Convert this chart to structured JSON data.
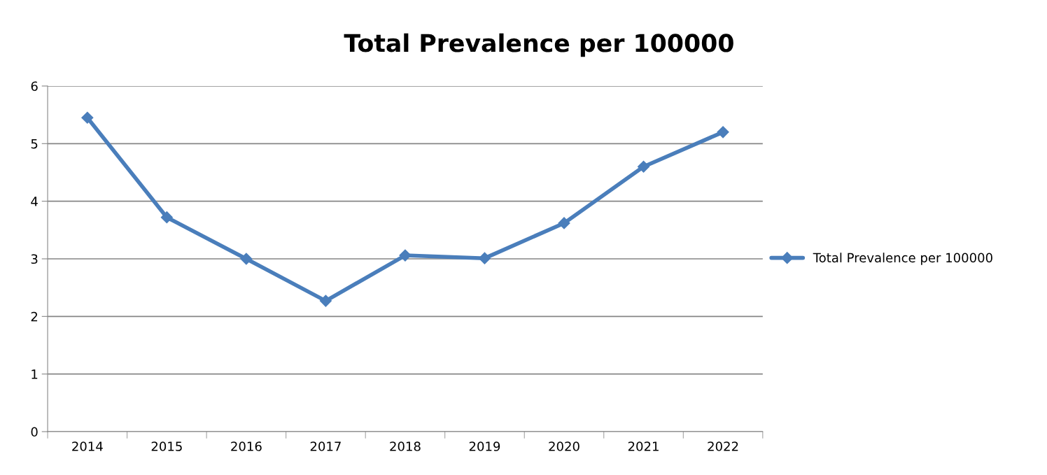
{
  "chart_data": {
    "type": "line",
    "title": "Total Prevalence per 100000",
    "categories": [
      "2014",
      "2015",
      "2016",
      "2017",
      "2018",
      "2019",
      "2020",
      "2021",
      "2022"
    ],
    "series": [
      {
        "name": "Total Prevalence per 100000",
        "color": "#4a7ebb",
        "values": [
          5.45,
          3.72,
          3.0,
          2.27,
          3.06,
          3.01,
          3.62,
          4.6,
          5.2
        ]
      }
    ],
    "ylim": [
      0,
      6
    ],
    "yticks": [
      0,
      1,
      2,
      3,
      4,
      5,
      6
    ],
    "grid": "y",
    "legend": "right",
    "marker": "diamond",
    "line_style": "solid"
  }
}
